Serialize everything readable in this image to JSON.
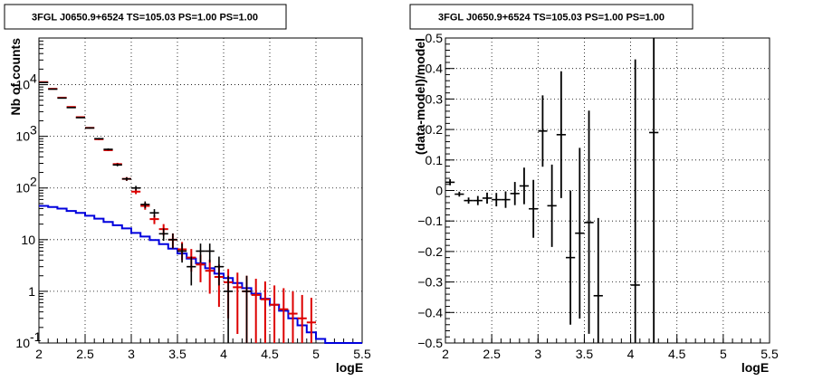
{
  "chart_data": [
    {
      "type": "histogram-errorbars",
      "title": "3FGL J0650.9+6524 TS=105.03 PS=1.00 PS=1.00",
      "xlabel": "logE",
      "ylabel": "Nb of counts",
      "xlim": [
        2,
        5.5
      ],
      "ylim": [
        0.1,
        80000
      ],
      "y_scale": "log",
      "grid": true,
      "x_ticks": [
        "2",
        "2.5",
        "3",
        "3.5",
        "4",
        "4.5",
        "5",
        "5.5"
      ],
      "y_ticks": [
        {
          "v": 0.1,
          "label": "10",
          "exp": "-1"
        },
        {
          "v": 1,
          "label": "1",
          "exp": ""
        },
        {
          "v": 10,
          "label": "10",
          "exp": ""
        },
        {
          "v": 100,
          "label": "10",
          "exp": "2"
        },
        {
          "v": 1000,
          "label": "10",
          "exp": "3"
        },
        {
          "v": 10000,
          "label": "10",
          "exp": "4"
        }
      ],
      "colors": {
        "data": "#000000",
        "model": "#dd0000",
        "background": "#0000dd"
      },
      "data_points": [
        {
          "x": 2.05,
          "y": 11000,
          "lo": 10900,
          "hi": 11100
        },
        {
          "x": 2.15,
          "y": 8200,
          "lo": 8100,
          "hi": 8300
        },
        {
          "x": 2.25,
          "y": 5500,
          "lo": 5430,
          "hi": 5570
        },
        {
          "x": 2.35,
          "y": 3600,
          "lo": 3540,
          "hi": 3660
        },
        {
          "x": 2.45,
          "y": 2300,
          "lo": 2250,
          "hi": 2350
        },
        {
          "x": 2.55,
          "y": 1450,
          "lo": 1410,
          "hi": 1490
        },
        {
          "x": 2.65,
          "y": 900,
          "lo": 870,
          "hi": 930
        },
        {
          "x": 2.75,
          "y": 560,
          "lo": 536,
          "hi": 584
        },
        {
          "x": 2.85,
          "y": 280,
          "lo": 263,
          "hi": 297
        },
        {
          "x": 2.95,
          "y": 150,
          "lo": 138,
          "hi": 162
        },
        {
          "x": 3.05,
          "y": 100,
          "lo": 90,
          "hi": 110
        },
        {
          "x": 3.15,
          "y": 48,
          "lo": 41,
          "hi": 55
        },
        {
          "x": 3.25,
          "y": 33,
          "lo": 27,
          "hi": 39
        },
        {
          "x": 3.35,
          "y": 13,
          "lo": 9.5,
          "hi": 16.5
        },
        {
          "x": 3.45,
          "y": 10,
          "lo": 6.8,
          "hi": 13.2
        },
        {
          "x": 3.55,
          "y": 6,
          "lo": 3.6,
          "hi": 8.4
        },
        {
          "x": 3.65,
          "y": 3,
          "lo": 1.3,
          "hi": 4.7
        },
        {
          "x": 3.75,
          "y": 6,
          "lo": 3.6,
          "hi": 8.4
        },
        {
          "x": 3.85,
          "y": 6,
          "lo": 3.6,
          "hi": 8.4
        },
        {
          "x": 3.95,
          "y": 3,
          "lo": 1.3,
          "hi": 4.7
        },
        {
          "x": 4.05,
          "y": 1,
          "lo": 0.1,
          "hi": 2
        },
        {
          "x": 4.25,
          "y": 1,
          "lo": 0.1,
          "hi": 2
        }
      ],
      "model_points": [
        {
          "x": 2.05,
          "y": 11200,
          "lo": 11100,
          "hi": 11300
        },
        {
          "x": 2.15,
          "y": 8300,
          "lo": 8200,
          "hi": 8400
        },
        {
          "x": 2.25,
          "y": 5600,
          "lo": 5530,
          "hi": 5670
        },
        {
          "x": 2.35,
          "y": 3700,
          "lo": 3640,
          "hi": 3760
        },
        {
          "x": 2.45,
          "y": 2350,
          "lo": 2300,
          "hi": 2400
        },
        {
          "x": 2.55,
          "y": 1460,
          "lo": 1420,
          "hi": 1500
        },
        {
          "x": 2.65,
          "y": 880,
          "lo": 850,
          "hi": 910
        },
        {
          "x": 2.75,
          "y": 540,
          "lo": 517,
          "hi": 563
        },
        {
          "x": 2.85,
          "y": 290,
          "lo": 273,
          "hi": 307
        },
        {
          "x": 2.95,
          "y": 150,
          "lo": 138,
          "hi": 162
        },
        {
          "x": 3.05,
          "y": 85,
          "lo": 76,
          "hi": 94
        },
        {
          "x": 3.15,
          "y": 45,
          "lo": 38,
          "hi": 52
        },
        {
          "x": 3.25,
          "y": 25,
          "lo": 20,
          "hi": 30
        },
        {
          "x": 3.35,
          "y": 16,
          "lo": 12,
          "hi": 20
        },
        {
          "x": 3.45,
          "y": 10,
          "lo": 6.8,
          "hi": 13.2
        },
        {
          "x": 3.55,
          "y": 6.5,
          "lo": 4,
          "hi": 9
        },
        {
          "x": 3.65,
          "y": 4.5,
          "lo": 2.4,
          "hi": 6.6
        },
        {
          "x": 3.75,
          "y": 3.3,
          "lo": 1.5,
          "hi": 5.1
        },
        {
          "x": 3.85,
          "y": 2.5,
          "lo": 0.9,
          "hi": 4.1
        },
        {
          "x": 3.95,
          "y": 1.9,
          "lo": 0.5,
          "hi": 3.3
        },
        {
          "x": 4.05,
          "y": 1.5,
          "lo": 0.3,
          "hi": 2.7
        },
        {
          "x": 4.15,
          "y": 1.2,
          "lo": 0.15,
          "hi": 2.3
        },
        {
          "x": 4.25,
          "y": 1.0,
          "lo": 0.1,
          "hi": 2.0
        },
        {
          "x": 4.35,
          "y": 0.85,
          "lo": 0.1,
          "hi": 1.75
        },
        {
          "x": 4.45,
          "y": 0.7,
          "lo": 0.1,
          "hi": 1.55
        },
        {
          "x": 4.55,
          "y": 0.55,
          "lo": 0.1,
          "hi": 1.3
        },
        {
          "x": 4.65,
          "y": 0.45,
          "lo": 0.1,
          "hi": 1.15
        },
        {
          "x": 4.75,
          "y": 0.37,
          "lo": 0.1,
          "hi": 1.0
        },
        {
          "x": 4.85,
          "y": 0.3,
          "lo": 0.1,
          "hi": 0.85
        },
        {
          "x": 4.95,
          "y": 0.25,
          "lo": 0.1,
          "hi": 0.75
        }
      ],
      "background_step": {
        "edges": [
          2.0,
          2.1,
          2.2,
          2.3,
          2.4,
          2.5,
          2.6,
          2.7,
          2.8,
          2.9,
          3.0,
          3.1,
          3.2,
          3.3,
          3.4,
          3.5,
          3.6,
          3.7,
          3.8,
          3.9,
          4.0,
          4.1,
          4.2,
          4.3,
          4.4,
          4.5,
          4.6,
          4.7,
          4.8,
          4.9,
          5.0,
          5.1,
          5.2,
          5.3,
          5.4,
          5.5
        ],
        "values": [
          45,
          43,
          40,
          36,
          33,
          29,
          25.5,
          22,
          19,
          16.5,
          13.5,
          11.5,
          9.8,
          8.2,
          6.7,
          5.4,
          4.3,
          3.5,
          2.8,
          2.2,
          1.8,
          1.45,
          1.15,
          0.9,
          0.72,
          0.55,
          0.42,
          0.3,
          0.22,
          0.16,
          0.12,
          0.1,
          0.1,
          0.1,
          0.1
        ]
      }
    },
    {
      "type": "errorbars",
      "title": "3FGL J0650.9+6524 TS=105.03 PS=1.00 PS=1.00",
      "xlabel": "logE",
      "ylabel": "(data-model)/model",
      "xlim": [
        2,
        5.5
      ],
      "ylim": [
        -0.5,
        0.5
      ],
      "grid": true,
      "x_ticks": [
        "2",
        "2.5",
        "3",
        "3.5",
        "4",
        "4.5",
        "5",
        "5.5"
      ],
      "y_ticks": [
        "−0.5",
        "−0.4",
        "−0.3",
        "−0.2",
        "−0.1",
        "0",
        "0.1",
        "0.2",
        "0.3",
        "0.4",
        "0.5"
      ],
      "y_tick_values": [
        -0.5,
        -0.4,
        -0.3,
        -0.2,
        -0.1,
        0,
        0.1,
        0.2,
        0.3,
        0.4,
        0.5
      ],
      "points": [
        {
          "x": 2.05,
          "y": 0.027,
          "lo": 0.017,
          "hi": 0.037
        },
        {
          "x": 2.15,
          "y": -0.012,
          "lo": -0.02,
          "hi": -0.004
        },
        {
          "x": 2.25,
          "y": -0.033,
          "lo": -0.043,
          "hi": -0.023
        },
        {
          "x": 2.35,
          "y": -0.033,
          "lo": -0.048,
          "hi": -0.018
        },
        {
          "x": 2.45,
          "y": -0.025,
          "lo": -0.043,
          "hi": -0.007
        },
        {
          "x": 2.55,
          "y": -0.03,
          "lo": -0.052,
          "hi": -0.008
        },
        {
          "x": 2.65,
          "y": -0.03,
          "lo": -0.057,
          "hi": -0.003
        },
        {
          "x": 2.75,
          "y": -0.01,
          "lo": -0.048,
          "hi": 0.028
        },
        {
          "x": 2.85,
          "y": 0.015,
          "lo": -0.045,
          "hi": 0.075
        },
        {
          "x": 2.95,
          "y": -0.06,
          "lo": -0.155,
          "hi": 0.035
        },
        {
          "x": 3.05,
          "y": 0.195,
          "lo": 0.078,
          "hi": 0.312
        },
        {
          "x": 3.15,
          "y": -0.05,
          "lo": -0.185,
          "hi": 0.085
        },
        {
          "x": 3.25,
          "y": 0.183,
          "lo": -0.025,
          "hi": 0.391
        },
        {
          "x": 3.35,
          "y": -0.22,
          "lo": -0.44,
          "hi": 0.0
        },
        {
          "x": 3.45,
          "y": -0.14,
          "lo": -0.42,
          "hi": 0.14
        },
        {
          "x": 3.55,
          "y": -0.105,
          "lo": -0.47,
          "hi": 0.262
        },
        {
          "x": 3.65,
          "y": -0.345,
          "lo": -0.5,
          "hi": -0.09
        },
        {
          "x": 4.05,
          "y": -0.31,
          "lo": -0.5,
          "hi": 0.43
        },
        {
          "x": 4.25,
          "y": 0.19,
          "lo": -0.5,
          "hi": 0.5
        }
      ]
    }
  ]
}
